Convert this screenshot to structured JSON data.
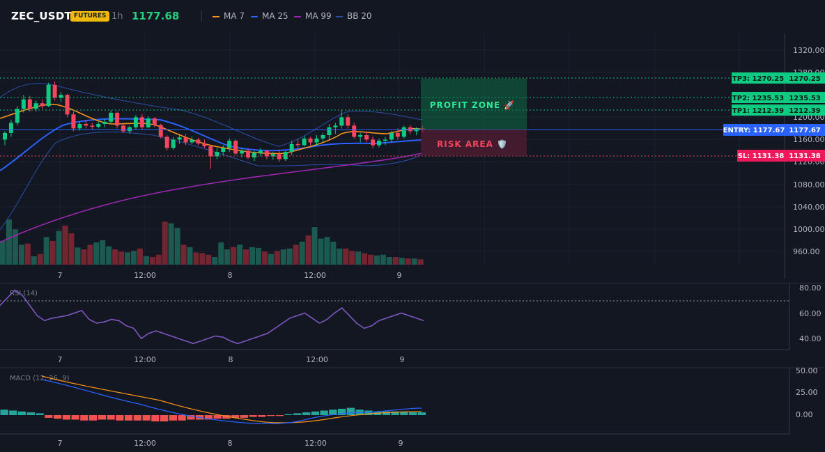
{
  "header": {
    "symbol": "ZEC_USDT",
    "badge": "FUTURES",
    "timeframe": "1h",
    "last_price": "1177.68",
    "legend": [
      {
        "label": "MA 7",
        "color": "#f7931a"
      },
      {
        "label": "MA 25",
        "color": "#2962ff"
      },
      {
        "label": "MA 99",
        "color": "#9c27b0"
      },
      {
        "label": "BB 20",
        "color": "#2a4fa8"
      }
    ]
  },
  "price_axis": {
    "ticks": [
      "1320.00",
      "1280.00",
      "1200.00",
      "1160.00",
      "1120.00",
      "1080.00",
      "1040.00",
      "1000.00",
      "960.00"
    ]
  },
  "time_axis": {
    "labels": [
      "7",
      "12:00",
      "8",
      "12:00",
      "9"
    ]
  },
  "levels": {
    "tp3": {
      "label": "TP3: 1270.25",
      "value": "1270.25",
      "color": "#0ecb81"
    },
    "tp2": {
      "label": "TP2: 1235.53",
      "value": "1235.53",
      "color": "#0ecb81"
    },
    "tp1": {
      "label": "TP1: 1212.39",
      "value": "1212.39",
      "color": "#0ecb81"
    },
    "entry": {
      "label": "ENTRY: 1177.67",
      "value": "1177.67",
      "color": "#2962ff"
    },
    "sl": {
      "label": "SL: 1131.38",
      "value": "1131.38",
      "color": "#f6465d"
    }
  },
  "zones": {
    "profit": "PROFIT ZONE 🚀",
    "risk": "RISK AREA 🛡️"
  },
  "rsi": {
    "title": "RSI (14)",
    "ticks": [
      "80.00",
      "60.00",
      "40.00"
    ]
  },
  "macd": {
    "title": "MACD (12, 26, 9)",
    "ticks": [
      "50.00",
      "25.00",
      "0.00"
    ]
  },
  "chart_data": {
    "type": "candlestick",
    "title": "ZEC_USDT 1h",
    "x_labels": [
      "7",
      "12:00",
      "8",
      "12:00",
      "9"
    ],
    "ylim": [
      930,
      1340
    ],
    "candles": [
      [
        1160,
        1175,
        1150,
        1172
      ],
      [
        1172,
        1195,
        1165,
        1190
      ],
      [
        1190,
        1220,
        1185,
        1215
      ],
      [
        1215,
        1240,
        1208,
        1232
      ],
      [
        1232,
        1238,
        1210,
        1215
      ],
      [
        1215,
        1230,
        1210,
        1225
      ],
      [
        1225,
        1232,
        1215,
        1220
      ],
      [
        1220,
        1262,
        1218,
        1258
      ],
      [
        1258,
        1264,
        1230,
        1235
      ],
      [
        1235,
        1245,
        1228,
        1240
      ],
      [
        1240,
        1242,
        1200,
        1205
      ],
      [
        1205,
        1210,
        1175,
        1180
      ],
      [
        1180,
        1192,
        1176,
        1188
      ],
      [
        1188,
        1195,
        1180,
        1185
      ],
      [
        1185,
        1190,
        1178,
        1183
      ],
      [
        1183,
        1192,
        1180,
        1188
      ],
      [
        1188,
        1196,
        1182,
        1192
      ],
      [
        1192,
        1212,
        1188,
        1208
      ],
      [
        1208,
        1210,
        1180,
        1185
      ],
      [
        1185,
        1190,
        1172,
        1175
      ],
      [
        1175,
        1185,
        1170,
        1182
      ],
      [
        1182,
        1204,
        1178,
        1200
      ],
      [
        1200,
        1206,
        1178,
        1182
      ],
      [
        1182,
        1202,
        1180,
        1198
      ],
      [
        1198,
        1200,
        1182,
        1186
      ],
      [
        1186,
        1188,
        1162,
        1165
      ],
      [
        1165,
        1168,
        1140,
        1145
      ],
      [
        1145,
        1165,
        1142,
        1160
      ],
      [
        1160,
        1168,
        1152,
        1164
      ],
      [
        1164,
        1170,
        1150,
        1155
      ],
      [
        1155,
        1166,
        1152,
        1160
      ],
      [
        1160,
        1163,
        1150,
        1153
      ],
      [
        1153,
        1160,
        1145,
        1148
      ],
      [
        1148,
        1150,
        1108,
        1130
      ],
      [
        1130,
        1145,
        1125,
        1138
      ],
      [
        1138,
        1150,
        1132,
        1145
      ],
      [
        1145,
        1162,
        1138,
        1158
      ],
      [
        1158,
        1160,
        1132,
        1135
      ],
      [
        1135,
        1145,
        1128,
        1140
      ],
      [
        1140,
        1143,
        1125,
        1128
      ],
      [
        1128,
        1140,
        1122,
        1136
      ],
      [
        1136,
        1145,
        1130,
        1140
      ],
      [
        1140,
        1142,
        1125,
        1130
      ],
      [
        1130,
        1138,
        1124,
        1134
      ],
      [
        1134,
        1142,
        1120,
        1125
      ],
      [
        1125,
        1140,
        1122,
        1138
      ],
      [
        1138,
        1158,
        1132,
        1152
      ],
      [
        1152,
        1160,
        1145,
        1150
      ],
      [
        1150,
        1166,
        1148,
        1162
      ],
      [
        1162,
        1165,
        1150,
        1155
      ],
      [
        1155,
        1168,
        1150,
        1162
      ],
      [
        1162,
        1172,
        1155,
        1168
      ],
      [
        1168,
        1188,
        1160,
        1182
      ],
      [
        1182,
        1190,
        1170,
        1185
      ],
      [
        1185,
        1212,
        1180,
        1200
      ],
      [
        1200,
        1205,
        1180,
        1185
      ],
      [
        1185,
        1190,
        1162,
        1165
      ],
      [
        1165,
        1172,
        1155,
        1168
      ],
      [
        1168,
        1175,
        1155,
        1160
      ],
      [
        1160,
        1165,
        1145,
        1150
      ],
      [
        1150,
        1162,
        1146,
        1158
      ],
      [
        1158,
        1165,
        1150,
        1160
      ],
      [
        1160,
        1175,
        1155,
        1172
      ],
      [
        1172,
        1180,
        1160,
        1165
      ],
      [
        1165,
        1185,
        1162,
        1182
      ],
      [
        1182,
        1186,
        1170,
        1175
      ],
      [
        1175,
        1182,
        1168,
        1180
      ],
      [
        1180,
        1184,
        1172,
        1177
      ]
    ],
    "volume": [
      62,
      118,
      92,
      52,
      55,
      22,
      28,
      72,
      62,
      88,
      102,
      82,
      45,
      40,
      52,
      58,
      64,
      48,
      40,
      34,
      32,
      36,
      42,
      22,
      20,
      26,
      112,
      108,
      96,
      52,
      46,
      32,
      30,
      26,
      20,
      58,
      40,
      46,
      52,
      40,
      46,
      44,
      34,
      28,
      36,
      40,
      42,
      52,
      60,
      76,
      98,
      68,
      72,
      60,
      42,
      42,
      36,
      34,
      30,
      26,
      24,
      26,
      20,
      20,
      18,
      16,
      16,
      14
    ],
    "rsi": [
      66,
      72,
      78,
      74,
      66,
      58,
      54,
      56,
      57,
      58,
      60,
      62,
      55,
      52,
      53,
      55,
      54,
      50,
      48,
      40,
      44,
      46,
      44,
      42,
      40,
      38,
      36,
      38,
      40,
      42,
      41,
      38,
      36,
      38,
      40,
      42,
      44,
      48,
      52,
      56,
      58,
      60,
      56,
      52,
      55,
      60,
      64,
      58,
      52,
      48,
      50,
      54,
      56,
      58,
      60,
      58,
      56,
      54
    ],
    "macd_hist": [
      6,
      5,
      4,
      3,
      2,
      -3,
      -4,
      -5,
      -5,
      -6,
      -6,
      -5,
      -5,
      -6,
      -6,
      -6,
      -6,
      -7,
      -7,
      -6,
      -6,
      -5,
      -5,
      -5,
      -4,
      -4,
      -3,
      -3,
      -2,
      -2,
      -1,
      -1,
      1,
      2,
      3,
      4,
      5,
      6,
      7,
      8,
      6,
      5,
      4,
      4,
      4,
      4,
      3,
      3
    ]
  }
}
